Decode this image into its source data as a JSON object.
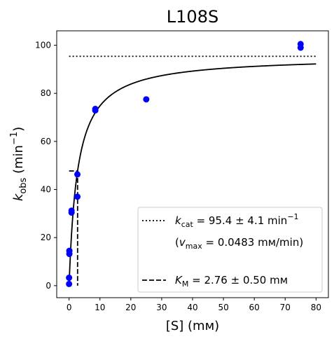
{
  "chart_data": {
    "type": "scatter",
    "title": "L108S",
    "xlabel": {
      "main": "[S] (",
      "unit": "mм",
      "close": ")"
    },
    "ylabel": {
      "k": "k",
      "sub": "obs",
      "unit": " (min",
      "sup": "−1",
      "close": ")"
    },
    "xlim": [
      -4,
      84
    ],
    "ylim": [
      -5,
      106
    ],
    "xticks": [
      0,
      10,
      20,
      30,
      40,
      50,
      60,
      70,
      80
    ],
    "yticks": [
      0,
      20,
      40,
      60,
      80,
      100
    ],
    "grid": false,
    "legend_position": "lower right",
    "points": [
      {
        "x": 0.0,
        "y": 0.7
      },
      {
        "x": 0.0,
        "y": 3.3
      },
      {
        "x": 0.1,
        "y": 13.2
      },
      {
        "x": 0.1,
        "y": 14.5
      },
      {
        "x": 0.8,
        "y": 30.4
      },
      {
        "x": 0.8,
        "y": 31.2
      },
      {
        "x": 2.7,
        "y": 37.0
      },
      {
        "x": 2.7,
        "y": 46.3
      },
      {
        "x": 8.5,
        "y": 72.9
      },
      {
        "x": 8.5,
        "y": 73.5
      },
      {
        "x": 25.0,
        "y": 77.5
      },
      {
        "x": 75.0,
        "y": 99.0
      },
      {
        "x": 75.0,
        "y": 100.5
      }
    ],
    "fit": {
      "model": "michaelis-menten",
      "kcat": 95.4,
      "KM": 2.76,
      "x_range": [
        0,
        80
      ]
    },
    "kcat_line": {
      "y": 95.4,
      "x_range": [
        0,
        80
      ]
    },
    "km_marker": {
      "x": 2.76,
      "y_half": 47.7,
      "x_from": 0
    },
    "colors": {
      "points": "#0000ff",
      "fit": "#000000"
    },
    "legend": [
      {
        "style": "dotted",
        "symbol": "k",
        "sub": "cat",
        "text": " = 95.4 ± 4.1 min",
        "sup": "−1"
      },
      {
        "style": "none",
        "prefix": "(",
        "symbol": "v",
        "sub": "max",
        "text": " = 0.0483 mм/min)"
      },
      {
        "style": "dashed",
        "symbol": "K",
        "sub": "M",
        "text": " = 2.76 ± 0.50 mм"
      }
    ]
  }
}
